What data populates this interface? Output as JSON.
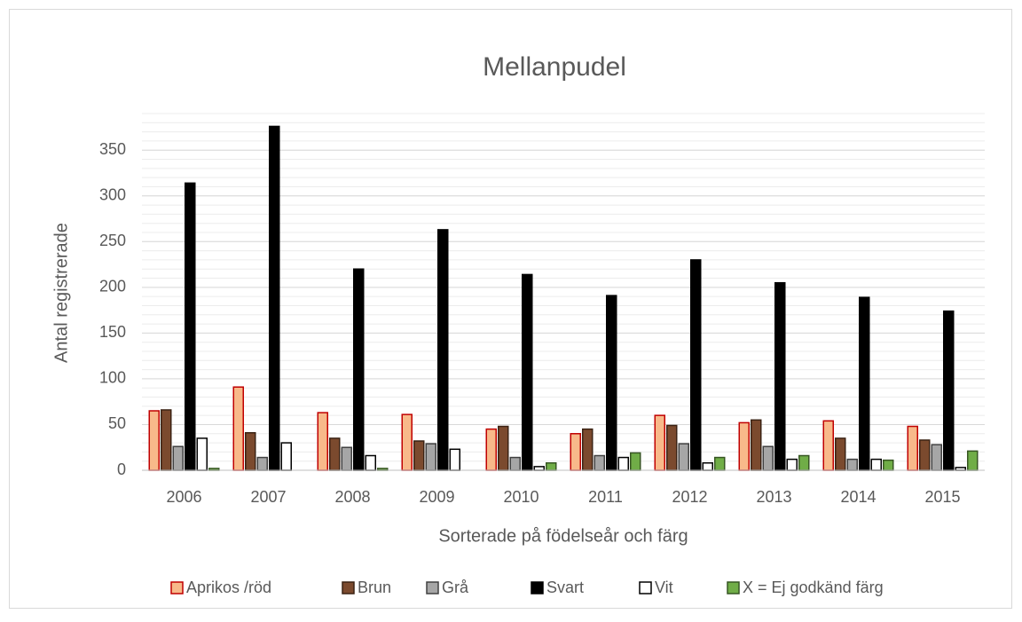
{
  "chart_data": {
    "type": "bar",
    "title": "Mellanpudel",
    "y_label": "Antal registrerade",
    "x_label": "Sorterade på födelseår och färg",
    "categories": [
      "2006",
      "2007",
      "2008",
      "2009",
      "2010",
      "2011",
      "2012",
      "2013",
      "2014",
      "2015"
    ],
    "series": [
      {
        "name": "Aprikos /röd",
        "color": "#f8b98a",
        "stroke": "#c00000",
        "values": [
          65,
          91,
          63,
          61,
          45,
          40,
          60,
          52,
          54,
          48
        ]
      },
      {
        "name": "Brun",
        "color": "#7b4a2e",
        "stroke": "#3b2314",
        "values": [
          66,
          41,
          35,
          32,
          48,
          45,
          49,
          55,
          35,
          33
        ]
      },
      {
        "name": "Grå",
        "color": "#a6a6a6",
        "stroke": "#404040",
        "values": [
          26,
          14,
          25,
          29,
          14,
          16,
          29,
          26,
          12,
          28
        ]
      },
      {
        "name": "Svart",
        "color": "#000000",
        "stroke": "#000000",
        "values": [
          314,
          376,
          220,
          263,
          214,
          191,
          230,
          205,
          189,
          174
        ]
      },
      {
        "name": "Vit",
        "color": "#ffffff",
        "stroke": "#000000",
        "values": [
          35,
          30,
          16,
          23,
          4,
          14,
          8,
          12,
          12,
          3
        ]
      },
      {
        "name": "X = Ej godkänd färg",
        "color": "#70ad47",
        "stroke": "#375623",
        "values": [
          2,
          0,
          2,
          0,
          8,
          19,
          14,
          16,
          11,
          21
        ]
      }
    ],
    "ylim": [
      0,
      390
    ],
    "yticks": [
      0,
      50,
      100,
      150,
      200,
      250,
      300,
      350
    ],
    "grid": true,
    "legend": "bottom"
  }
}
